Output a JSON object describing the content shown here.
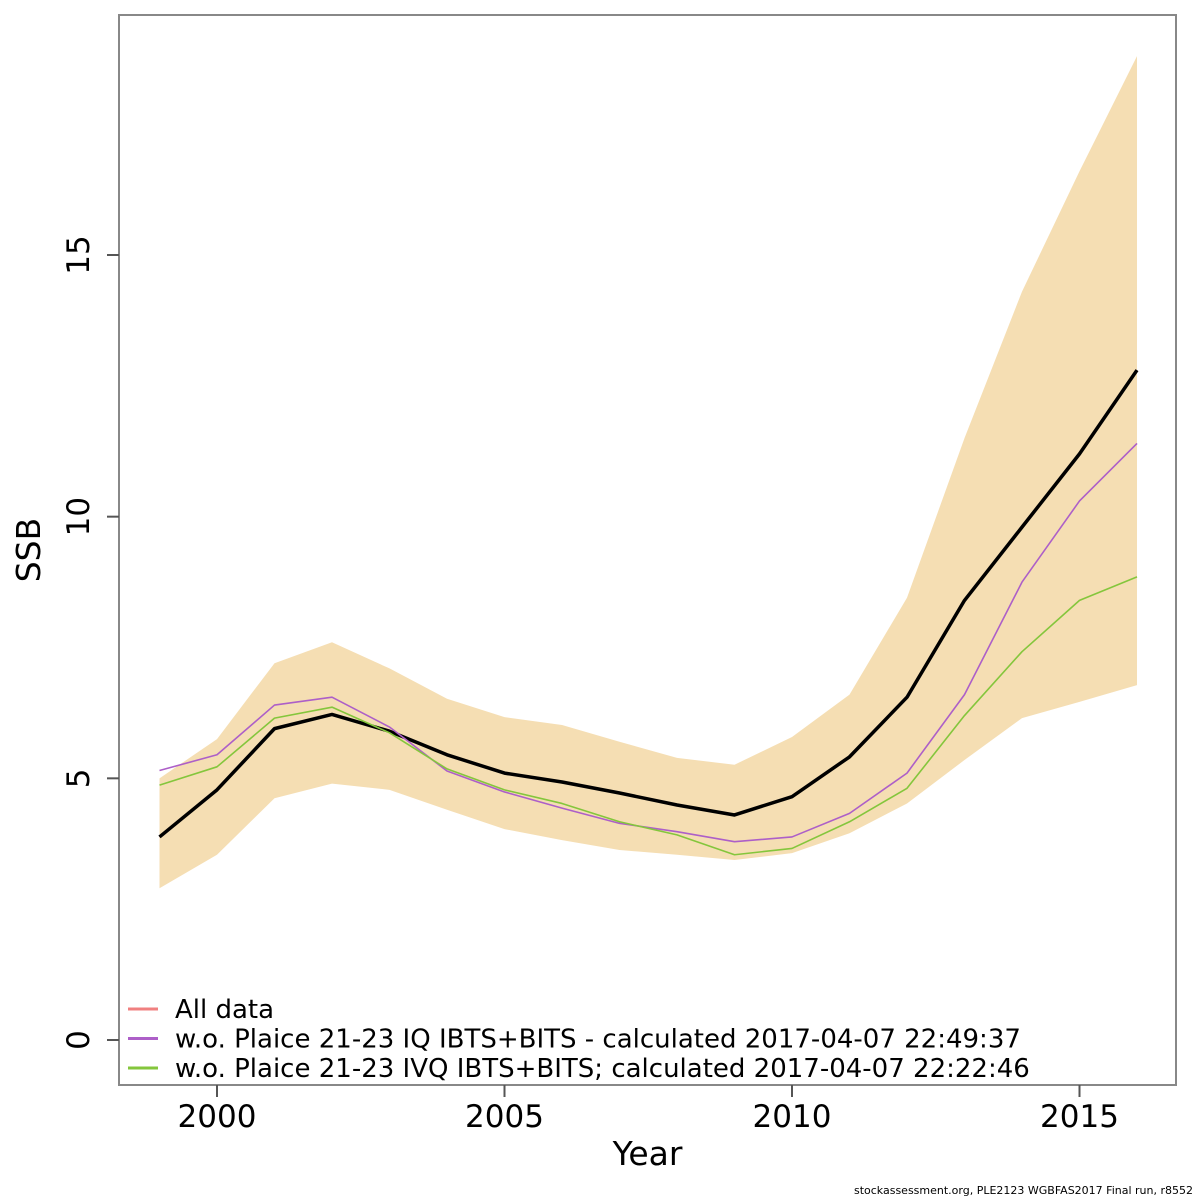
{
  "chart_data": {
    "type": "line",
    "title": "",
    "xlabel": "Year",
    "ylabel": "SSB",
    "x_ticks": [
      2000,
      2005,
      2010,
      2015
    ],
    "y_ticks": [
      0,
      5,
      10,
      15
    ],
    "xlim": [
      1998.2,
      2016.9
    ],
    "ylim": [
      -0.9,
      19.6
    ],
    "grid": false,
    "legend_position": "bottom-left",
    "x": [
      1999,
      2000,
      2001,
      2002,
      2003,
      2004,
      2005,
      2006,
      2007,
      2008,
      2009,
      2010,
      2011,
      2012,
      2013,
      2014,
      2015,
      2016
    ],
    "band": {
      "name": "confidence-band",
      "color": "#f5deb3",
      "low": [
        2.9,
        3.54,
        4.62,
        4.9,
        4.78,
        4.4,
        4.03,
        3.82,
        3.63,
        3.54,
        3.44,
        3.57,
        3.95,
        4.52,
        5.35,
        6.15,
        6.46,
        6.78
      ],
      "high": [
        5.0,
        5.75,
        7.2,
        7.6,
        7.1,
        6.52,
        6.17,
        6.02,
        5.7,
        5.39,
        5.26,
        5.79,
        6.6,
        8.45,
        11.5,
        14.3,
        16.6,
        18.8
      ]
    },
    "series": [
      {
        "name": "All data",
        "color": "#f08080",
        "values": [
          3.88,
          4.78,
          5.95,
          6.22,
          5.9,
          5.45,
          5.1,
          4.93,
          4.72,
          4.49,
          4.3,
          4.65,
          5.41,
          6.55,
          8.4,
          9.8,
          11.2,
          12.8
        ]
      },
      {
        "name": "w.o. Plaice 21-23 IQ IBTS+BITS - calculated 2017-04-07 22:49:37",
        "color": "#ad5fc8",
        "values": [
          5.15,
          5.45,
          6.4,
          6.55,
          5.98,
          5.14,
          4.74,
          4.43,
          4.14,
          3.98,
          3.79,
          3.88,
          4.33,
          5.1,
          6.6,
          8.75,
          10.3,
          11.4
        ]
      },
      {
        "name": "w.o. Plaice 21-23 IVQ IBTS+BITS; calculated 2017-04-07 22:22:46",
        "color": "#84c63c",
        "values": [
          4.87,
          5.22,
          6.15,
          6.36,
          5.87,
          5.18,
          4.78,
          4.52,
          4.17,
          3.92,
          3.54,
          3.66,
          4.17,
          4.81,
          6.2,
          7.42,
          8.4,
          8.85
        ]
      }
    ],
    "base_line": {
      "name": "base-fit-line",
      "color": "#000000",
      "width": 3.5,
      "note": "thick black central estimate drawn over the red All-data line"
    }
  },
  "footer": {
    "text": "stockassessment.org, PLE2123 WGBFAS2017 Final run, r8552"
  }
}
